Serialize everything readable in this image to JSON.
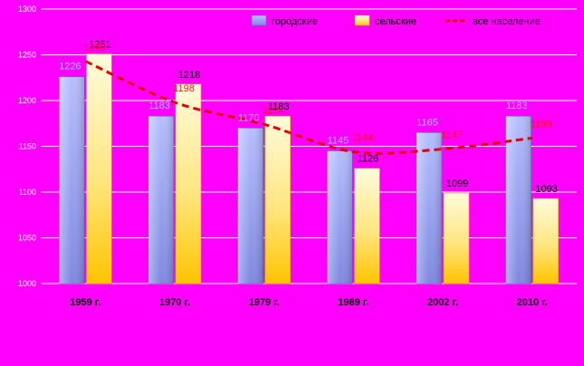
{
  "chart_data": {
    "type": "bar",
    "categories": [
      "1959 г.",
      "1970 г.",
      "1979 г.",
      "1989 г.",
      "2002 г.",
      "2010 г."
    ],
    "series": [
      {
        "name": "городские",
        "type": "bar",
        "values": [
          1226,
          1183,
          1170,
          1145,
          1165,
          1183
        ],
        "color": "#8f9aef"
      },
      {
        "name": "сельские",
        "type": "bar",
        "values": [
          1251,
          1218,
          1183,
          1126,
          1099,
          1093
        ],
        "color": "#ffe680"
      },
      {
        "name": "все население",
        "type": "line",
        "style": "dashed",
        "values": [
          1243,
          1198,
          1174,
          1144,
          1147,
          1159
        ],
        "color": "#e00000"
      }
    ],
    "yticks": [
      1000,
      1050,
      1100,
      1150,
      1200,
      1250,
      1300
    ],
    "ylim": [
      1000,
      1300
    ],
    "grid": true,
    "legend": "top-right"
  },
  "colors": {
    "background": "#ff00ff",
    "urban_light": "#b6beff",
    "urban_dark": "#7f88e0",
    "rural_light": "#fffbdc",
    "rural_dark": "#ffc400",
    "line": "#e00000",
    "gridline": "#ffffff"
  }
}
